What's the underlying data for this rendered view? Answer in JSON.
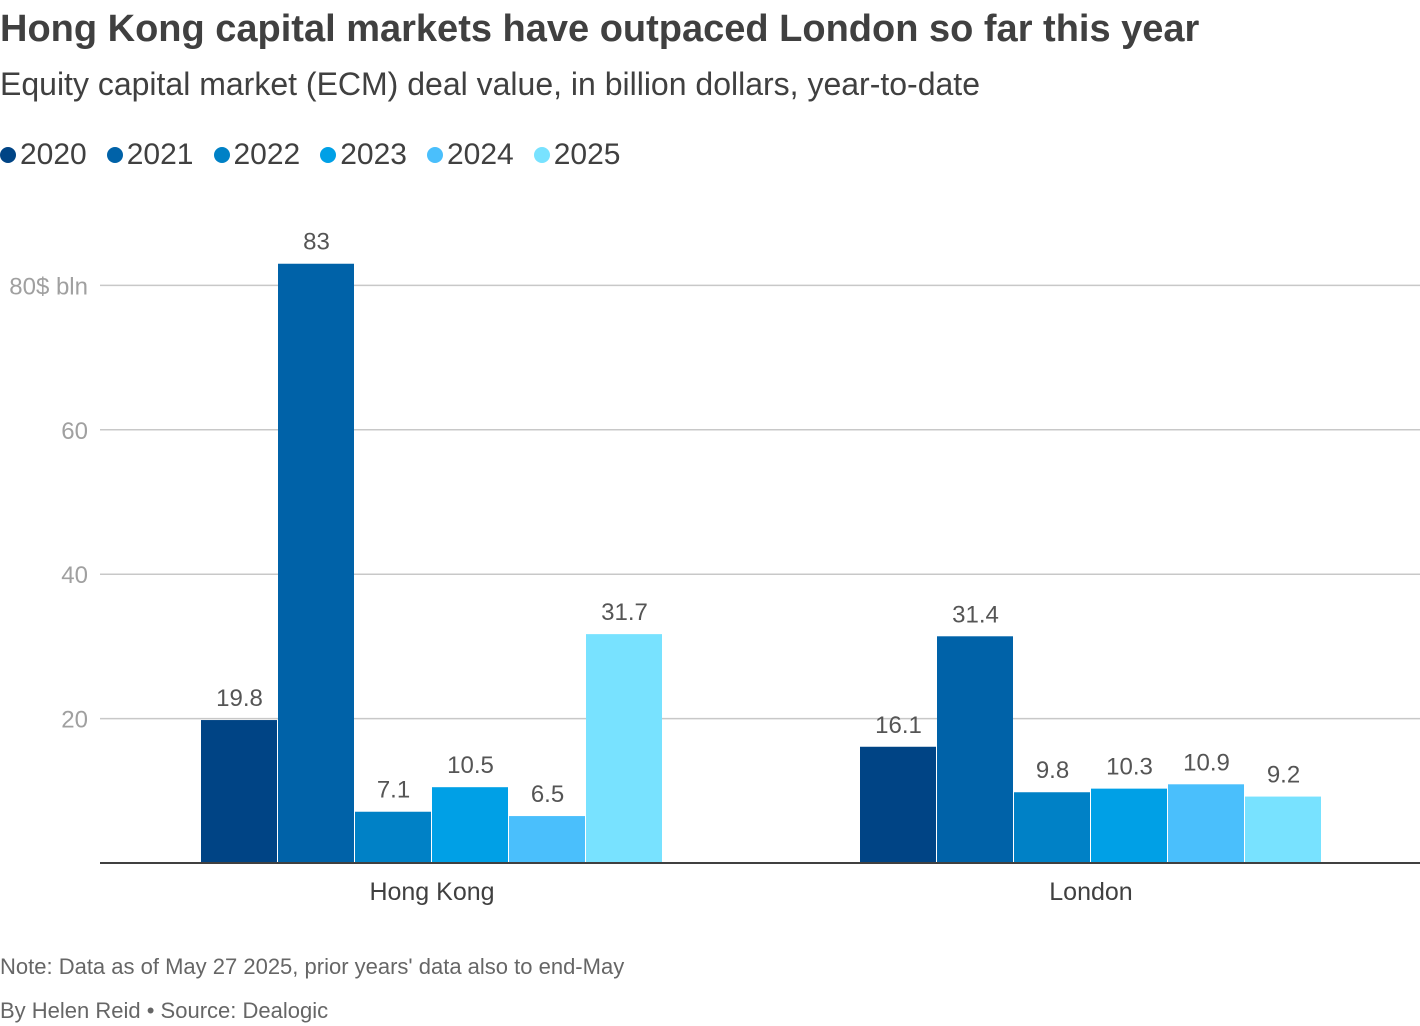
{
  "header": {
    "title": "Hong Kong capital markets have outpaced London so far this year",
    "subtitle": "Equity capital market (ECM) deal value, in billion dollars, year-to-date"
  },
  "footer": {
    "note": "Note: Data as of May 27 2025, prior years' data also to end-May",
    "byline": "By Helen Reid • Source: Dealogic"
  },
  "chart_data": {
    "type": "bar",
    "title": "Hong Kong capital markets have outpaced London so far this year",
    "subtitle": "Equity capital market (ECM) deal value, in billion dollars, year-to-date",
    "categories": [
      "Hong Kong",
      "London"
    ],
    "series": [
      {
        "name": "2020",
        "color": "#004485",
        "values": [
          19.8,
          16.1
        ],
        "labels": [
          "19.8",
          "16.1"
        ]
      },
      {
        "name": "2021",
        "color": "#0062A8",
        "values": [
          83,
          31.4
        ],
        "labels": [
          "83",
          "31.4"
        ]
      },
      {
        "name": "2022",
        "color": "#0081C6",
        "values": [
          7.1,
          9.8
        ],
        "labels": [
          "7.1",
          "9.8"
        ]
      },
      {
        "name": "2023",
        "color": "#00A0E6",
        "values": [
          10.5,
          10.3
        ],
        "labels": [
          "10.5",
          "10.3"
        ]
      },
      {
        "name": "2024",
        "color": "#4ABFFC",
        "values": [
          6.5,
          10.9
        ],
        "labels": [
          "6.5",
          "10.9"
        ]
      },
      {
        "name": "2025",
        "color": "#78E2FF",
        "values": [
          31.7,
          9.2
        ],
        "labels": [
          "31.7",
          "9.2"
        ]
      }
    ],
    "yticks": [
      {
        "value": 20,
        "label": "20"
      },
      {
        "value": 40,
        "label": "40"
      },
      {
        "value": 60,
        "label": "60"
      },
      {
        "value": 80,
        "label": "80$ bln"
      }
    ],
    "ylim": [
      0,
      83
    ],
    "xlabel": "",
    "ylabel": "$ bln",
    "grid": true,
    "legend_position": "top-left"
  }
}
